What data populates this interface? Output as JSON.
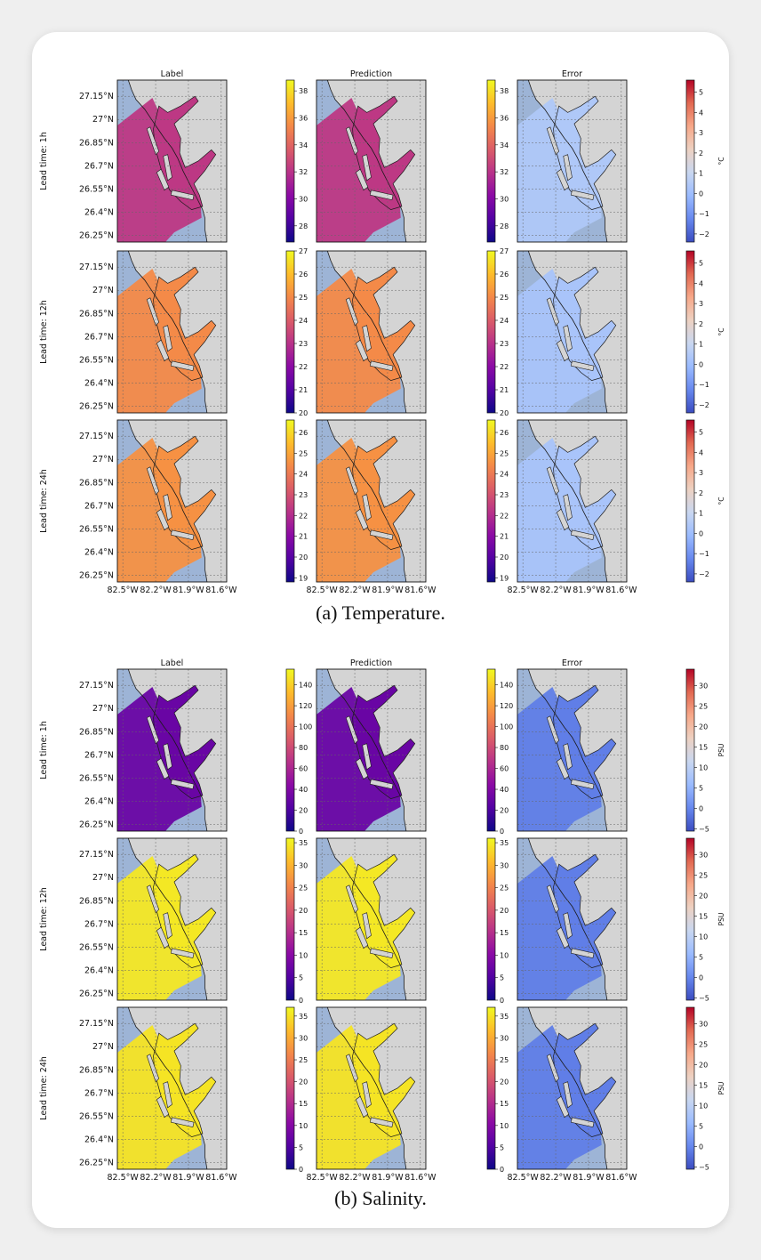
{
  "colors": {
    "ocean": "#9db4d6",
    "land": "#d4d4d4",
    "coast": "#1a1a1a",
    "grid": "#666666",
    "plasma": [
      "#0d0887",
      "#5302a3",
      "#8b0aa5",
      "#b83289",
      "#db5c68",
      "#f48849",
      "#febc2a",
      "#f0f921"
    ],
    "coolwarm": [
      "#3b4cc0",
      "#6788ee",
      "#9abbff",
      "#c9d7f0",
      "#edd1c2",
      "#f7a889",
      "#e26952",
      "#b40426"
    ]
  },
  "icons": [
    "coastline-map"
  ],
  "figure": {
    "panel_titles": [
      "Label",
      "Prediction",
      "Error"
    ],
    "y_ticks": [
      "27.15°N",
      "27°N",
      "26.85°N",
      "26.7°N",
      "26.55°N",
      "26.4°N",
      "26.25°N"
    ],
    "x_ticks": [
      "82.5°W",
      "82.2°W",
      "81.9°W",
      "81.6°W"
    ],
    "row_labels": [
      "Lead time: 1h",
      "Lead time: 12h",
      "Lead time: 24h"
    ],
    "captions": [
      "(a) Temperature.",
      "(b) Salinity."
    ]
  },
  "chart_data": [
    {
      "type": "heatmap",
      "title": "(a) Temperature.",
      "panel_titles": [
        "Label",
        "Prediction",
        "Error"
      ],
      "row_labels": [
        "Lead time: 1h",
        "Lead time: 12h",
        "Lead time: 24h"
      ],
      "x_ticks": [
        "82.5°W",
        "82.2°W",
        "81.9°W",
        "81.6°W"
      ],
      "y_ticks": [
        "27.15°N",
        "27°N",
        "26.85°N",
        "26.7°N",
        "26.55°N",
        "26.4°N",
        "26.25°N"
      ],
      "xlim": [
        -82.55,
        -81.55
      ],
      "ylim": [
        26.2,
        27.22
      ],
      "rows": [
        {
          "value_colorbar": {
            "unit": "°C",
            "ticks": [
              28,
              30,
              32,
              34,
              36,
              38
            ],
            "range": [
              26.8,
              38.8
            ]
          },
          "error_colorbar": {
            "unit": "°C",
            "ticks": [
              -2,
              -1,
              0,
              1,
              2,
              3,
              4,
              5
            ],
            "range": [
              -2.4,
              5.6
            ]
          },
          "label_fill": 0.45,
          "prediction_fill": 0.45,
          "error_fill": 0.35
        },
        {
          "value_colorbar": {
            "unit": "°C",
            "ticks": [
              20,
              21,
              22,
              23,
              24,
              25,
              26,
              27
            ],
            "range": [
              20,
              27
            ]
          },
          "error_colorbar": {
            "unit": "°C",
            "ticks": [
              -2,
              -1,
              0,
              1,
              2,
              3,
              4,
              5
            ],
            "range": [
              -2.4,
              5.6
            ]
          },
          "label_fill": 0.72,
          "prediction_fill": 0.72,
          "error_fill": 0.33
        },
        {
          "value_colorbar": {
            "unit": "°C",
            "ticks": [
              19,
              20,
              21,
              22,
              23,
              24,
              25,
              26
            ],
            "range": [
              18.8,
              26.6
            ]
          },
          "error_colorbar": {
            "unit": "°C",
            "ticks": [
              -2,
              -1,
              0,
              1,
              2,
              3,
              4,
              5
            ],
            "range": [
              -2.4,
              5.6
            ]
          },
          "label_fill": 0.74,
          "prediction_fill": 0.74,
          "error_fill": 0.33
        }
      ]
    },
    {
      "type": "heatmap",
      "title": "(b) Salinity.",
      "panel_titles": [
        "Label",
        "Prediction",
        "Error"
      ],
      "row_labels": [
        "Lead time: 1h",
        "Lead time: 12h",
        "Lead time: 24h"
      ],
      "x_ticks": [
        "82.5°W",
        "82.2°W",
        "81.9°W",
        "81.6°W"
      ],
      "y_ticks": [
        "27.15°N",
        "27°N",
        "26.85°N",
        "26.7°N",
        "26.55°N",
        "26.4°N",
        "26.25°N"
      ],
      "xlim": [
        -82.55,
        -81.55
      ],
      "ylim": [
        26.2,
        27.22
      ],
      "rows": [
        {
          "value_colorbar": {
            "unit": "PSU",
            "ticks": [
              0,
              20,
              40,
              60,
              80,
              100,
              120,
              140
            ],
            "range": [
              0,
              155
            ]
          },
          "error_colorbar": {
            "unit": "PSU",
            "ticks": [
              -5,
              0,
              5,
              10,
              15,
              20,
              25,
              30
            ],
            "range": [
              -5.5,
              34
            ]
          },
          "label_fill": 0.2,
          "prediction_fill": 0.2,
          "error_fill": 0.12
        },
        {
          "value_colorbar": {
            "unit": "PSU",
            "ticks": [
              0,
              5,
              10,
              15,
              20,
              25,
              30,
              35
            ],
            "range": [
              0,
              36
            ]
          },
          "error_colorbar": {
            "unit": "PSU",
            "ticks": [
              -5,
              0,
              5,
              10,
              15,
              20,
              25,
              30
            ],
            "range": [
              -5.5,
              34
            ]
          },
          "label_fill": 0.96,
          "prediction_fill": 0.96,
          "error_fill": 0.12
        },
        {
          "value_colorbar": {
            "unit": "PSU",
            "ticks": [
              0,
              5,
              10,
              15,
              20,
              25,
              30,
              35
            ],
            "range": [
              0,
              37
            ]
          },
          "error_colorbar": {
            "unit": "PSU",
            "ticks": [
              -5,
              0,
              5,
              10,
              15,
              20,
              25,
              30
            ],
            "range": [
              -5.5,
              34
            ]
          },
          "label_fill": 0.95,
          "prediction_fill": 0.95,
          "error_fill": 0.12
        }
      ]
    }
  ]
}
